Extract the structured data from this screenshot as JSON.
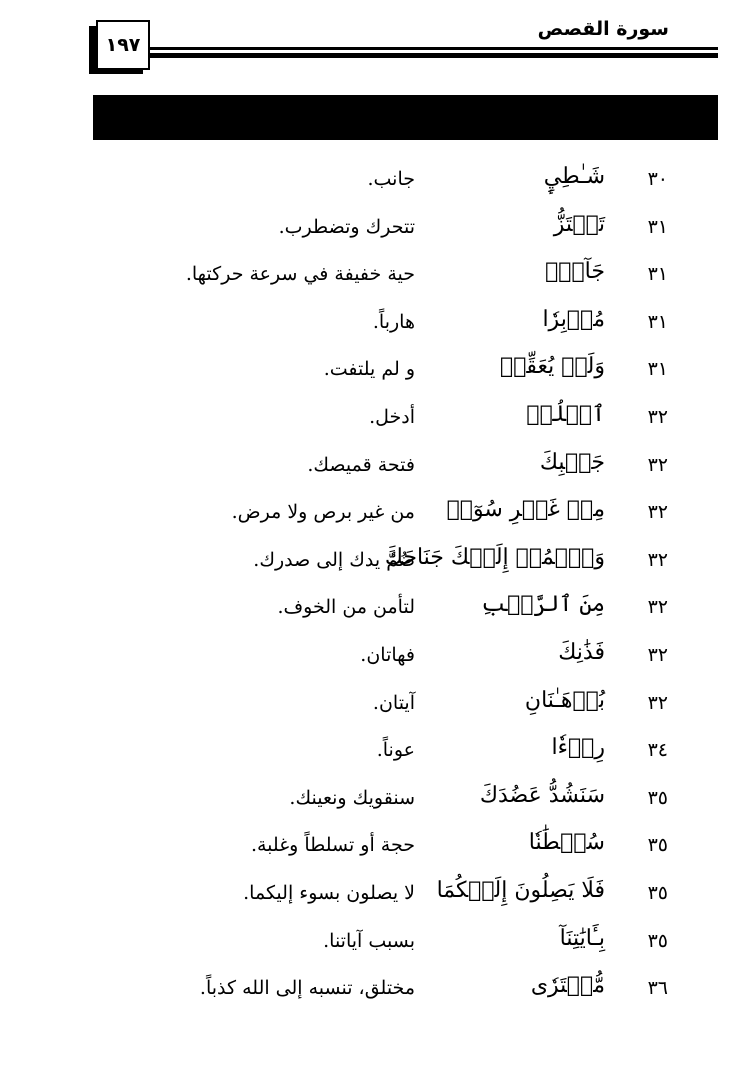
{
  "header": {
    "surah_title": "سورة القصص",
    "page_number": "١٩٧"
  },
  "entries": [
    {
      "verse": "٣٠",
      "word": "شَـٰطِيِٕ",
      "meaning": "جانب."
    },
    {
      "verse": "٣١",
      "word": "تَهۡتَزُّ",
      "meaning": "تتحرك وتضطرب."
    },
    {
      "verse": "٣١",
      "word": "جَآنّٞ",
      "meaning": "حية خفيفة في سرعة حركتها."
    },
    {
      "verse": "٣١",
      "word": "مُدۡبِرٗا",
      "meaning": "هارباً."
    },
    {
      "verse": "٣١",
      "word": "وَلَمۡ يُعَقِّبۡ",
      "meaning": "و لم يلتفت."
    },
    {
      "verse": "٣٢",
      "word": "ٱسۡلُكۡ",
      "meaning": "أدخل."
    },
    {
      "verse": "٣٢",
      "word": "جَيۡبِكَ",
      "meaning": "فتحة قميصك."
    },
    {
      "verse": "٣٢",
      "word": "مِنۡ غَيۡرِ سُوٓءٖ",
      "meaning": "من غير برص ولا مرض."
    },
    {
      "verse": "٣٢",
      "word": "وَٱضۡمُمۡ إِلَيۡكَ جَنَاحَكَ",
      "meaning": "ضُمَّ يدك إلى صدرك."
    },
    {
      "verse": "٣٢",
      "word": "مِنَ ٱلرَّهۡبِ",
      "meaning": "لتأمن من الخوف."
    },
    {
      "verse": "٣٢",
      "word": "فَذَٰنِكَ",
      "meaning": "فهاتان."
    },
    {
      "verse": "٣٢",
      "word": "بُرۡهَـٰنَانِ",
      "meaning": "آيتان."
    },
    {
      "verse": "٣٤",
      "word": "رِدۡءٗا",
      "meaning": "عوناً."
    },
    {
      "verse": "٣٥",
      "word": "سَنَشُدُّ عَضُدَكَ",
      "meaning": "سنقويك ونعينك."
    },
    {
      "verse": "٣٥",
      "word": "سُلۡطَٰنٗا",
      "meaning": "حجة أو تسلطاً وغلبة."
    },
    {
      "verse": "٣٥",
      "word": "فَلَا يَصِلُونَ إِلَيۡكُمَا",
      "meaning": "لا يصلون بسوء إليكما."
    },
    {
      "verse": "٣٥",
      "word": "بِـَٔايَٰتِنَآ",
      "meaning": "بسبب آياتنا."
    },
    {
      "verse": "٣٦",
      "word": "مُّفۡتَرٗى",
      "meaning": "مختلق، تنسبه إلى الله كذباً."
    }
  ]
}
